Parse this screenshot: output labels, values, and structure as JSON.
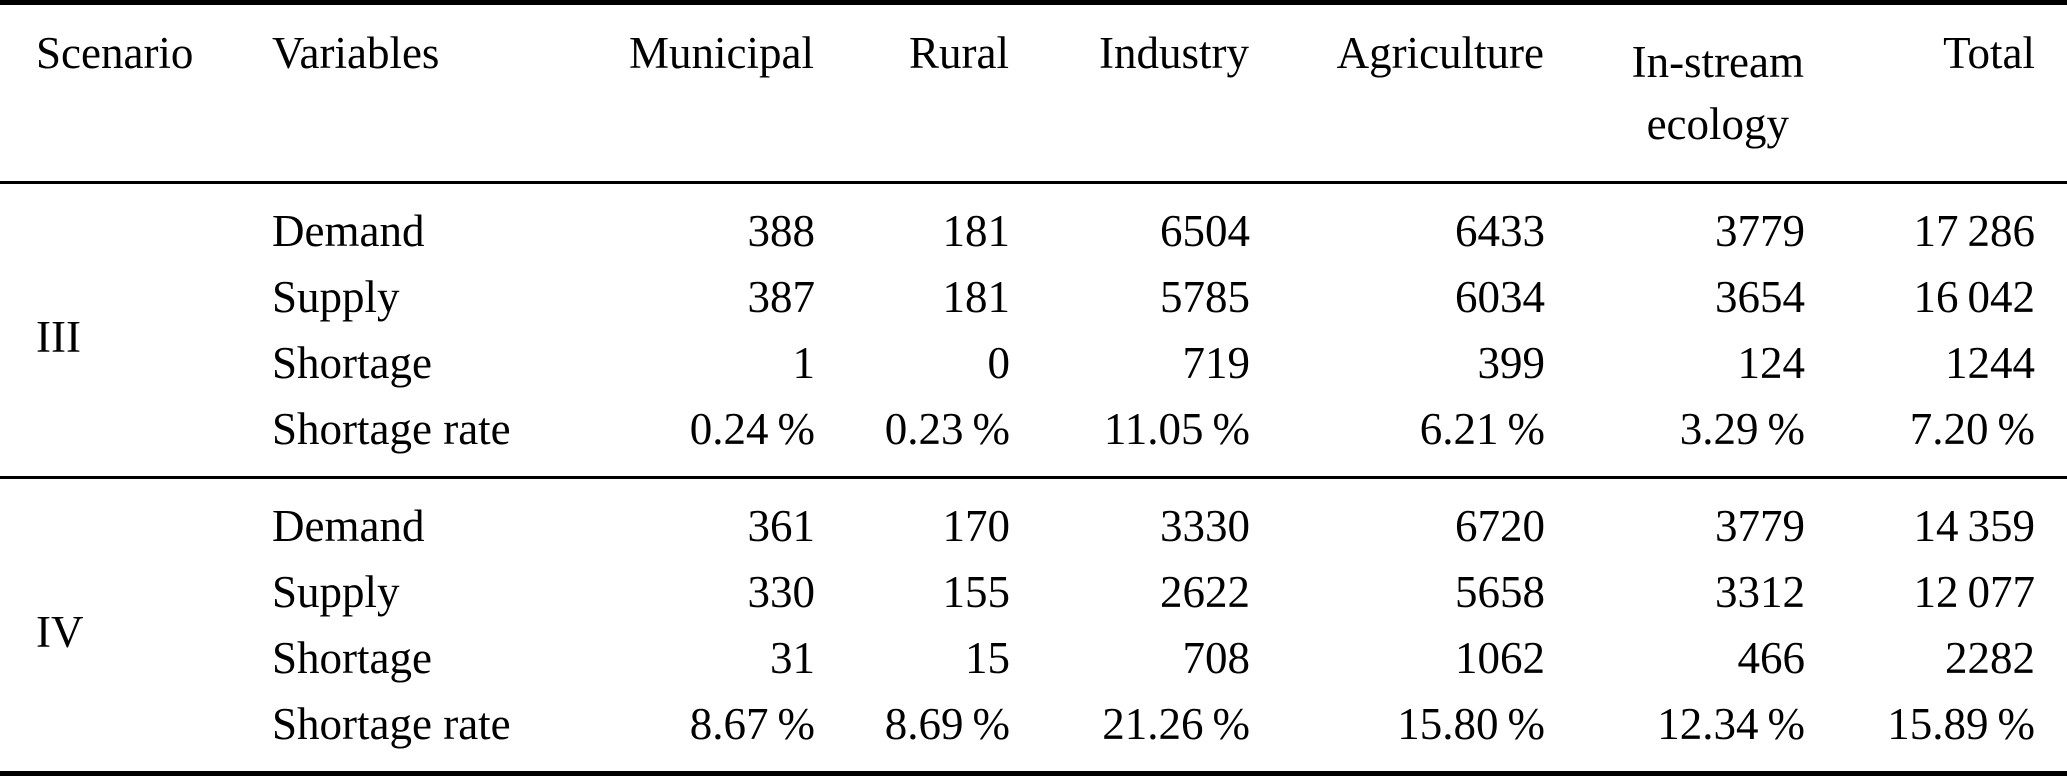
{
  "table": {
    "header": {
      "scenario": "Scenario",
      "variables": "Variables",
      "municipal": "Municipal",
      "rural": "Rural",
      "industry": "Industry",
      "agriculture": "Agriculture",
      "instream_line1": "In-stream",
      "instream_line2": "ecology",
      "total": "Total"
    },
    "sections": [
      {
        "scenario": "III",
        "rows": [
          {
            "variable": "Demand",
            "municipal": "388",
            "rural": "181",
            "industry": "6504",
            "agriculture": "6433",
            "instream": "3779",
            "total": "17 286"
          },
          {
            "variable": "Supply",
            "municipal": "387",
            "rural": "181",
            "industry": "5785",
            "agriculture": "6034",
            "instream": "3654",
            "total": "16 042"
          },
          {
            "variable": "Shortage",
            "municipal": "1",
            "rural": "0",
            "industry": "719",
            "agriculture": "399",
            "instream": "124",
            "total": "1244"
          },
          {
            "variable": "Shortage rate",
            "municipal": "0.24 %",
            "rural": "0.23 %",
            "industry": "11.05 %",
            "agriculture": "6.21 %",
            "instream": "3.29 %",
            "total": "7.20 %"
          }
        ]
      },
      {
        "scenario": "IV",
        "rows": [
          {
            "variable": "Demand",
            "municipal": "361",
            "rural": "170",
            "industry": "3330",
            "agriculture": "6720",
            "instream": "3779",
            "total": "14 359"
          },
          {
            "variable": "Supply",
            "municipal": "330",
            "rural": "155",
            "industry": "2622",
            "agriculture": "5658",
            "instream": "3312",
            "total": "12 077"
          },
          {
            "variable": "Shortage",
            "municipal": "31",
            "rural": "15",
            "industry": "708",
            "agriculture": "1062",
            "instream": "466",
            "total": "2282"
          },
          {
            "variable": "Shortage rate",
            "municipal": "8.67 %",
            "rural": "8.69 %",
            "industry": "21.26 %",
            "agriculture": "15.80 %",
            "instream": "12.34 %",
            "total": "15.89 %"
          }
        ]
      }
    ]
  }
}
